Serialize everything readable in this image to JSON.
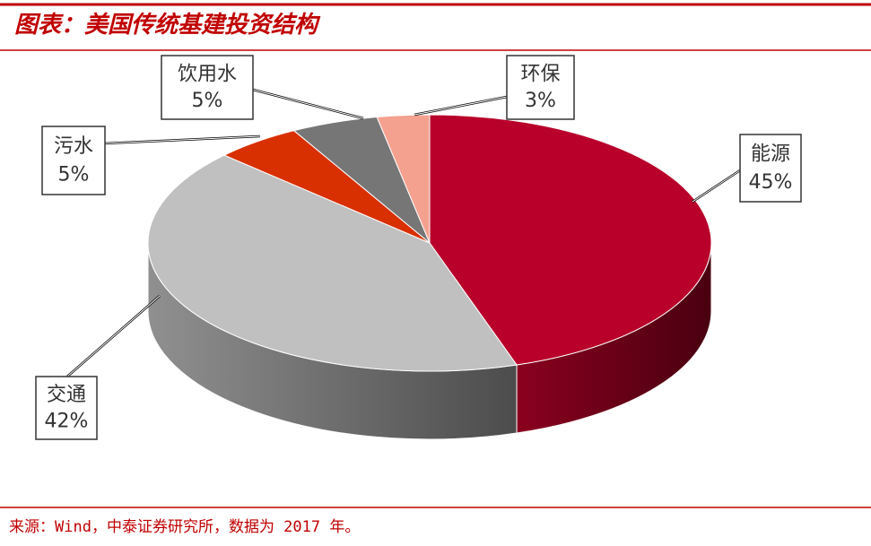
{
  "chart_data": {
    "type": "pie",
    "title": "图表：美国传统基建投资结构",
    "source": "来源：Wind，中泰证券研究所，数据为 2017 年。",
    "categories": [
      "能源",
      "交通",
      "污水",
      "饮用水",
      "环保"
    ],
    "values": [
      45,
      42,
      5,
      5,
      3
    ],
    "value_labels": [
      "45%",
      "42%",
      "5%",
      "5%",
      "3%"
    ],
    "colors": [
      "#b8002a",
      "#c0c0c0",
      "#d83000",
      "#767676",
      "#f4a190"
    ]
  }
}
